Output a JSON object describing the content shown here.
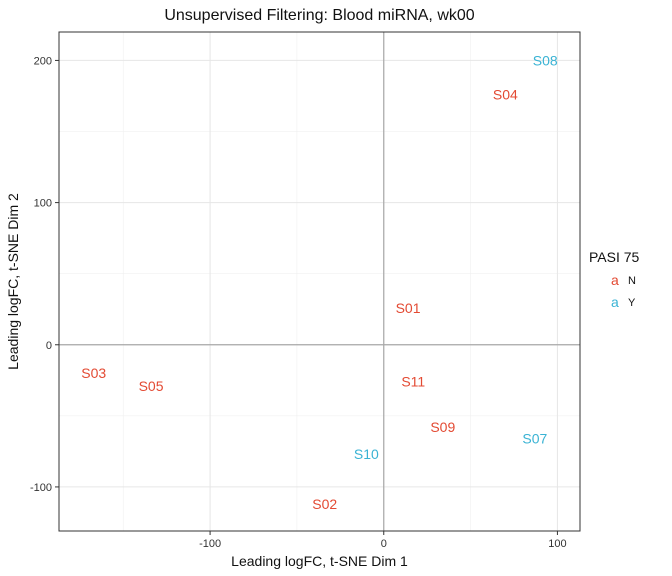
{
  "chart_data": {
    "type": "scatter",
    "title": "Unsupervised Filtering: Blood miRNA, wk00",
    "xlabel": "Leading logFC, t-SNE Dim 1",
    "ylabel": "Leading logFC, t-SNE Dim 2",
    "xlim": [
      -187,
      113
    ],
    "ylim": [
      -131,
      220
    ],
    "xticks": [
      -100,
      0,
      100
    ],
    "xtick_labels": [
      "-100",
      "0",
      "100"
    ],
    "yticks": [
      -100,
      0,
      100,
      200
    ],
    "ytick_labels": [
      "-100",
      "0",
      "100",
      "200"
    ],
    "grid": true,
    "zero_lines": true,
    "legend": {
      "title": "PASI 75",
      "placement": "right",
      "key_glyph": "a",
      "entries": [
        {
          "label": "N",
          "color": "#e34a33"
        },
        {
          "label": "Y",
          "color": "#3ab3d4"
        }
      ]
    },
    "points": [
      {
        "label": "S08",
        "x": 93,
        "y": 200,
        "group": "Y"
      },
      {
        "label": "S04",
        "x": 70,
        "y": 176,
        "group": "N"
      },
      {
        "label": "S01",
        "x": 14,
        "y": 26,
        "group": "N"
      },
      {
        "label": "S03",
        "x": -167,
        "y": -20,
        "group": "N"
      },
      {
        "label": "S05",
        "x": -134,
        "y": -29,
        "group": "N"
      },
      {
        "label": "S11",
        "x": 17,
        "y": -26,
        "group": "N"
      },
      {
        "label": "S09",
        "x": 34,
        "y": -58,
        "group": "N"
      },
      {
        "label": "S07",
        "x": 87,
        "y": -66,
        "group": "Y"
      },
      {
        "label": "S10",
        "x": -10,
        "y": -77,
        "group": "Y"
      },
      {
        "label": "S02",
        "x": -34,
        "y": -112,
        "group": "N"
      }
    ]
  }
}
